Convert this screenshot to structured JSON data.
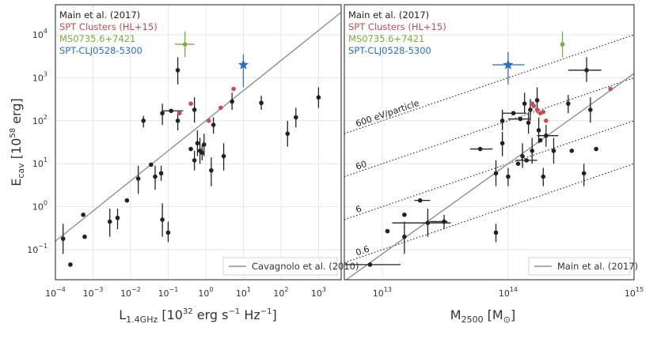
{
  "chart_data": [
    {
      "type": "scatter",
      "panel": "left",
      "xscale": "log",
      "yscale": "log",
      "xlim": [
        0.0001,
        4000
      ],
      "ylim": [
        0.02,
        50000
      ],
      "xlabel": "L1.4GHz [10^32 erg s^-1 Hz^-1]",
      "xlabel_main": "L",
      "xlabel_sub": "1.4GHz",
      "xlabel_rest": " [10",
      "xlabel_sup1": "32",
      "xlabel_mid": " erg s",
      "xlabel_sup2": "−1",
      "xlabel_mid2": " Hz",
      "xlabel_sup3": "−1",
      "xlabel_end": "]",
      "ylabel": "Ecav [10^58 erg]",
      "xticks": [
        0.0001,
        0.001,
        0.01,
        0.1,
        1,
        10,
        100,
        1000
      ],
      "xtick_base": [
        "10",
        "10",
        "10",
        "10",
        "10",
        "10",
        "10",
        "10"
      ],
      "xtick_exp": [
        "−4",
        "−3",
        "−2",
        "−1",
        "0",
        "1",
        "2",
        "3"
      ],
      "yticks": [
        0.1,
        1,
        10,
        100,
        1000,
        10000
      ],
      "ytick_exp": [
        "−1",
        "0",
        "1",
        "2",
        "3",
        "4"
      ],
      "header_lines": [
        {
          "label": "Main et al. (2017)",
          "color": "#222222"
        },
        {
          "label": "SPT Clusters (HL+15)",
          "color": "#c44e52"
        },
        {
          "label": "MS0735.6+7421",
          "color": "#7cac3d"
        },
        {
          "label": "SPT-CLJ0528-5300",
          "color": "#2b6fc2"
        }
      ],
      "line_legend": "Cavagnolo et al. (2010)",
      "fit_line": {
        "slope": 0.7,
        "intercept_log": 2.0
      },
      "series": [
        {
          "name": "Main et al. (2017)",
          "color": "#222222",
          "points": [
            {
              "x": 0.00016,
              "y": 0.18,
              "yerr": [
                0.08,
                0.4
              ]
            },
            {
              "x": 0.00025,
              "y": 0.045
            },
            {
              "x": 0.00055,
              "y": 0.65
            },
            {
              "x": 0.0006,
              "y": 0.2
            },
            {
              "x": 0.0028,
              "y": 0.45,
              "yerr": [
                0.2,
                0.9
              ]
            },
            {
              "x": 0.0045,
              "y": 0.55,
              "yerr": [
                0.3,
                0.9
              ]
            },
            {
              "x": 0.008,
              "y": 1.4
            },
            {
              "x": 0.016,
              "y": 4.5,
              "yerr": [
                2,
                9
              ]
            },
            {
              "x": 0.022,
              "y": 100,
              "yerr": [
                70,
                130
              ]
            },
            {
              "x": 0.035,
              "y": 9.5
            },
            {
              "x": 0.045,
              "y": 5,
              "yerr": [
                2.5,
                9
              ]
            },
            {
              "x": 0.065,
              "y": 6,
              "yerr": [
                4,
                9
              ]
            },
            {
              "x": 0.07,
              "y": 0.5,
              "yerr": [
                0.2,
                1.2
              ]
            },
            {
              "x": 0.07,
              "y": 150,
              "yerr": [
                80,
                250
              ]
            },
            {
              "x": 0.1,
              "y": 0.25,
              "yerr": [
                0.15,
                0.45
              ]
            },
            {
              "x": 0.12,
              "y": 170,
              "xerr": [
                0.07,
                0.25
              ]
            },
            {
              "x": 0.18,
              "y": 1500,
              "yerr": [
                700,
                3000
              ]
            },
            {
              "x": 0.18,
              "y": 100,
              "yerr": [
                60,
                160
              ]
            },
            {
              "x": 0.4,
              "y": 22
            },
            {
              "x": 0.5,
              "y": 180,
              "yerr": [
                90,
                350
              ]
            },
            {
              "x": 0.5,
              "y": 12,
              "yerr": [
                7,
                20
              ]
            },
            {
              "x": 0.6,
              "y": 30,
              "yerr": [
                15,
                60
              ]
            },
            {
              "x": 0.7,
              "y": 20,
              "yerr": [
                10,
                40
              ]
            },
            {
              "x": 0.8,
              "y": 18,
              "yerr": [
                12,
                28
              ]
            },
            {
              "x": 0.9,
              "y": 28,
              "yerr": [
                15,
                50
              ]
            },
            {
              "x": 1.4,
              "y": 7,
              "yerr": [
                3,
                14
              ]
            },
            {
              "x": 1.6,
              "y": 80,
              "yerr": [
                50,
                120
              ]
            },
            {
              "x": 3,
              "y": 15,
              "yerr": [
                7,
                30
              ]
            },
            {
              "x": 5,
              "y": 280,
              "yerr": [
                180,
                450
              ]
            },
            {
              "x": 30,
              "y": 260,
              "yerr": [
                180,
                380
              ]
            },
            {
              "x": 150,
              "y": 50,
              "yerr": [
                25,
                100
              ]
            },
            {
              "x": 250,
              "y": 120,
              "yerr": [
                70,
                200
              ]
            },
            {
              "x": 1000,
              "y": 350,
              "yerr": [
                200,
                600
              ]
            }
          ]
        },
        {
          "name": "SPT Clusters (HL+15)",
          "color": "#c44e52",
          "points": [
            {
              "x": 0.2,
              "y": 150
            },
            {
              "x": 0.4,
              "y": 250
            },
            {
              "x": 1.2,
              "y": 100
            },
            {
              "x": 2.5,
              "y": 200
            },
            {
              "x": 5.5,
              "y": 550
            }
          ]
        },
        {
          "name": "MS0735.6+7421",
          "color": "#7cac3d",
          "points": [
            {
              "x": 0.28,
              "y": 6000,
              "xerr": [
                0.15,
                0.5
              ],
              "yerr": [
                3000,
                12000
              ]
            }
          ]
        },
        {
          "name": "SPT-CLJ0528-5300",
          "color": "#2b6fc2",
          "marker": "star",
          "points": [
            {
              "x": 10,
              "y": 2000,
              "yerr": [
                600,
                3500
              ]
            }
          ]
        }
      ]
    },
    {
      "type": "scatter",
      "panel": "right",
      "xscale": "log",
      "yscale": "log",
      "xlim": [
        5000000000000.0,
        1000000000000000.0
      ],
      "ylim": [
        0.02,
        50000
      ],
      "xlabel": "M2500 [M⊙]",
      "xlabel_main": "M",
      "xlabel_sub": "2500",
      "xlabel_rest": " [M",
      "xlabel_sub2": "⊙",
      "xlabel_end": "]",
      "xticks": [
        10000000000000.0,
        100000000000000.0,
        1000000000000000.0
      ],
      "xtick_base": [
        "10",
        "10",
        "10"
      ],
      "xtick_exp": [
        "13",
        "14",
        "15"
      ],
      "header_lines": [
        {
          "label": "Main et al. (2017)",
          "color": "#222222"
        },
        {
          "label": "SPT Clusters (HL+15)",
          "color": "#c44e52"
        },
        {
          "label": "MS0735.6+7421",
          "color": "#7cac3d"
        },
        {
          "label": "SPT-CLJ0528-5300",
          "color": "#2b6fc2"
        }
      ],
      "line_legend": "Main et al. (2017)",
      "fit_line": {
        "slope": 2.1,
        "intercept_log": 1.0
      },
      "energy_lines": [
        {
          "label": "600 eV/particle",
          "intercept_log": 3.0
        },
        {
          "label": "60",
          "intercept_log": 2.0
        },
        {
          "label": "6",
          "intercept_log": 1.0
        },
        {
          "label": "0.6",
          "intercept_log": 0.0
        }
      ],
      "series": [
        {
          "name": "Main et al. (2017)",
          "color": "#222222",
          "points": [
            {
              "x": 8000000000000.0,
              "y": 0.045,
              "xerr": [
                5000000000000.0,
                14000000000000.0
              ]
            },
            {
              "x": 11000000000000.0,
              "y": 0.27
            },
            {
              "x": 15000000000000.0,
              "y": 0.2,
              "yerr": [
                0.08,
                0.45
              ]
            },
            {
              "x": 15000000000000.0,
              "y": 0.65
            },
            {
              "x": 23000000000000.0,
              "y": 0.42,
              "xerr": [
                12000000000000.0,
                35000000000000.0
              ],
              "yerr": [
                0.2,
                0.9
              ]
            },
            {
              "x": 20000000000000.0,
              "y": 1.4,
              "xerr": [
                18000000000000.0,
                24000000000000.0
              ]
            },
            {
              "x": 31000000000000.0,
              "y": 0.45,
              "xerr": [
                24000000000000.0,
                33000000000000.0
              ],
              "yerr": [
                0.3,
                0.65
              ]
            },
            {
              "x": 60000000000000.0,
              "y": 22,
              "xerr": [
                50000000000000.0,
                75000000000000.0
              ]
            },
            {
              "x": 80000000000000.0,
              "y": 6,
              "yerr": [
                3,
                12
              ]
            },
            {
              "x": 80000000000000.0,
              "y": 0.25,
              "yerr": [
                0.15,
                0.4
              ]
            },
            {
              "x": 90000000000000.0,
              "y": 100,
              "yerr": [
                60,
                180
              ]
            },
            {
              "x": 90000000000000.0,
              "y": 30,
              "yerr": [
                15,
                55
              ]
            },
            {
              "x": 100000000000000.0,
              "y": 5,
              "yerr": [
                3,
                8
              ]
            },
            {
              "x": 110000000000000.0,
              "y": 150,
              "xerr": [
                90000000000000.0,
                140000000000000.0
              ]
            },
            {
              "x": 120000000000000.0,
              "y": 10
            },
            {
              "x": 125000000000000.0,
              "y": 110,
              "xerr": [
                100000000000000.0,
                150000000000000.0
              ]
            },
            {
              "x": 130000000000000.0,
              "y": 15,
              "yerr": [
                8,
                30
              ]
            },
            {
              "x": 135000000000000.0,
              "y": 250,
              "yerr": [
                150,
                450
              ]
            },
            {
              "x": 140000000000000.0,
              "y": 12,
              "xerr": [
                115000000000000.0,
                170000000000000.0
              ]
            },
            {
              "x": 145000000000000.0,
              "y": 90,
              "yerr": [
                50,
                160
              ]
            },
            {
              "x": 150000000000000.0,
              "y": 180,
              "yerr": [
                100,
                320
              ]
            },
            {
              "x": 155000000000000.0,
              "y": 20,
              "yerr": [
                10,
                40
              ]
            },
            {
              "x": 170000000000000.0,
              "y": 300,
              "yerr": [
                150,
                600
              ]
            },
            {
              "x": 175000000000000.0,
              "y": 60,
              "yerr": [
                30,
                120
              ]
            },
            {
              "x": 180000000000000.0,
              "y": 35
            },
            {
              "x": 190000000000000.0,
              "y": 5,
              "yerr": [
                3,
                8
              ]
            },
            {
              "x": 200000000000000.0,
              "y": 45,
              "xerr": [
                170000000000000.0,
                250000000000000.0
              ],
              "yerr": [
                25,
                80
              ]
            },
            {
              "x": 230000000000000.0,
              "y": 20,
              "yerr": [
                10,
                40
              ]
            },
            {
              "x": 300000000000000.0,
              "y": 250,
              "yerr": [
                150,
                400
              ]
            },
            {
              "x": 320000000000000.0,
              "y": 20
            },
            {
              "x": 400000000000000.0,
              "y": 6,
              "yerr": [
                3,
                10
              ]
            },
            {
              "x": 420000000000000.0,
              "y": 1500,
              "xerr": [
                300000000000000.0,
                550000000000000.0
              ],
              "yerr": [
                800,
                3000
              ]
            },
            {
              "x": 450000000000000.0,
              "y": 180,
              "yerr": [
                90,
                350
              ]
            },
            {
              "x": 500000000000000.0,
              "y": 22
            }
          ]
        },
        {
          "name": "SPT Clusters (HL+15)",
          "color": "#c44e52",
          "points": [
            {
              "x": 155000000000000.0,
              "y": 250
            },
            {
              "x": 160000000000000.0,
              "y": 220
            },
            {
              "x": 170000000000000.0,
              "y": 180
            },
            {
              "x": 180000000000000.0,
              "y": 150
            },
            {
              "x": 190000000000000.0,
              "y": 160
            },
            {
              "x": 200000000000000.0,
              "y": 100
            },
            {
              "x": 650000000000000.0,
              "y": 550
            }
          ]
        },
        {
          "name": "MS0735.6+7421",
          "color": "#7cac3d",
          "points": [
            {
              "x": 270000000000000.0,
              "y": 6000,
              "yerr": [
                3000,
                12000
              ]
            }
          ]
        },
        {
          "name": "SPT-CLJ0528-5300",
          "color": "#2b6fc2",
          "marker": "star",
          "points": [
            {
              "x": 100000000000000.0,
              "y": 2000,
              "xerr": [
                75000000000000.0,
                135000000000000.0
              ],
              "yerr": [
                700,
                4000
              ]
            }
          ]
        }
      ]
    }
  ],
  "shared_ylabel": {
    "main": "E",
    "sub": "cav",
    "rest": " [10",
    "sup": "58",
    "end": " erg]"
  },
  "ytick_base": [
    "10",
    "10",
    "10",
    "10",
    "10",
    "10"
  ]
}
